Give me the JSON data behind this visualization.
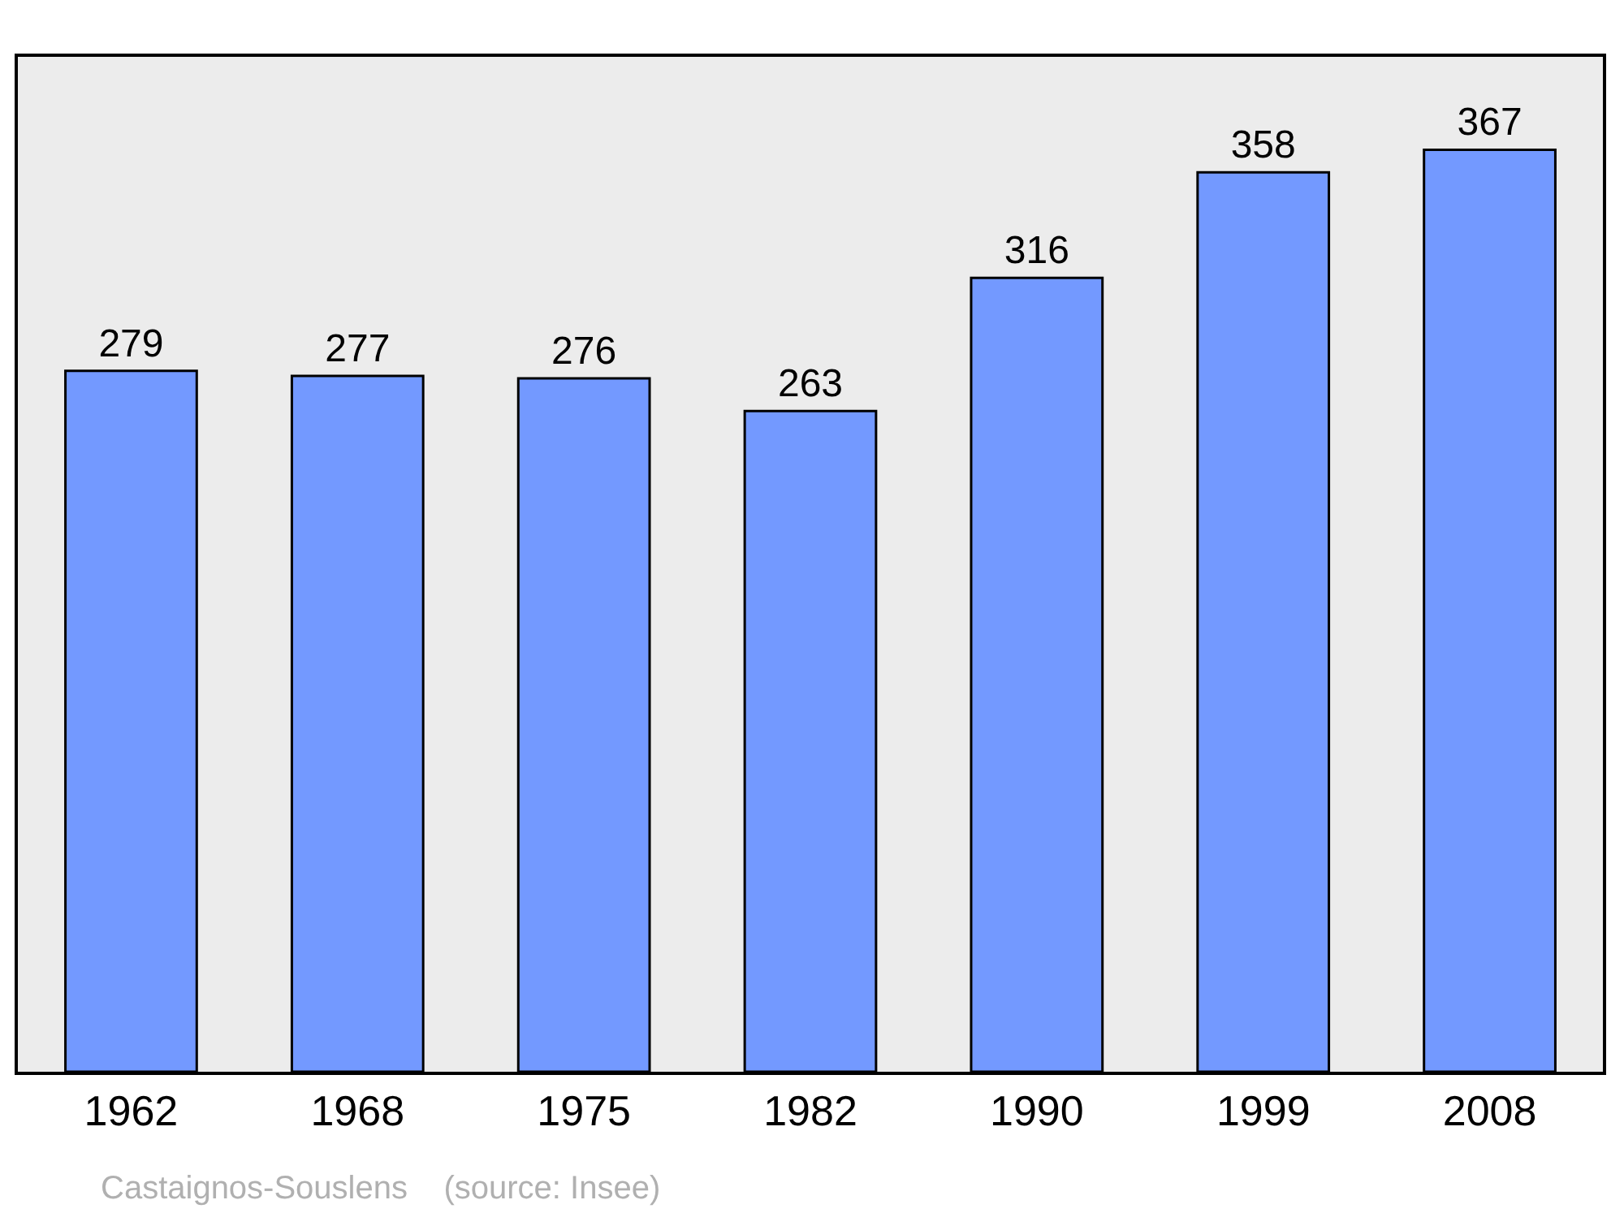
{
  "chart_data": {
    "type": "bar",
    "categories": [
      "1962",
      "1968",
      "1975",
      "1982",
      "1990",
      "1999",
      "2008"
    ],
    "values": [
      279,
      277,
      276,
      263,
      316,
      358,
      367
    ],
    "color": "#7399ff",
    "ylim": [
      0,
      404
    ],
    "data_labels": true,
    "grid": false,
    "legend": false,
    "tick_labels": "x",
    "annotations": [
      "Castaignos-Souslens    (source: Insee)"
    ]
  }
}
